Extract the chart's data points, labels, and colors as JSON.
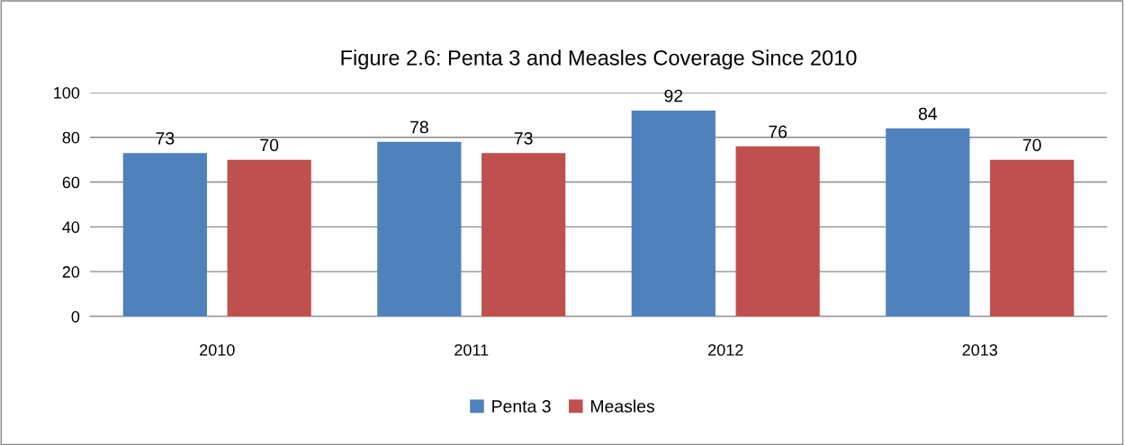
{
  "chart_data": {
    "type": "bar",
    "title": "Figure 2.6: Penta 3 and Measles Coverage Since 2010",
    "categories": [
      "2010",
      "2011",
      "2012",
      "2013"
    ],
    "series": [
      {
        "name": "Penta 3",
        "color": "#4f81bd",
        "values": [
          73,
          78,
          92,
          84
        ]
      },
      {
        "name": "Measles",
        "color": "#c0504d",
        "values": [
          70,
          73,
          76,
          70
        ]
      }
    ],
    "ylim": [
      0,
      100
    ],
    "yticks": [
      0,
      20,
      40,
      60,
      80,
      100
    ],
    "grid": "y",
    "legend": "bottom",
    "data_labels": true
  }
}
